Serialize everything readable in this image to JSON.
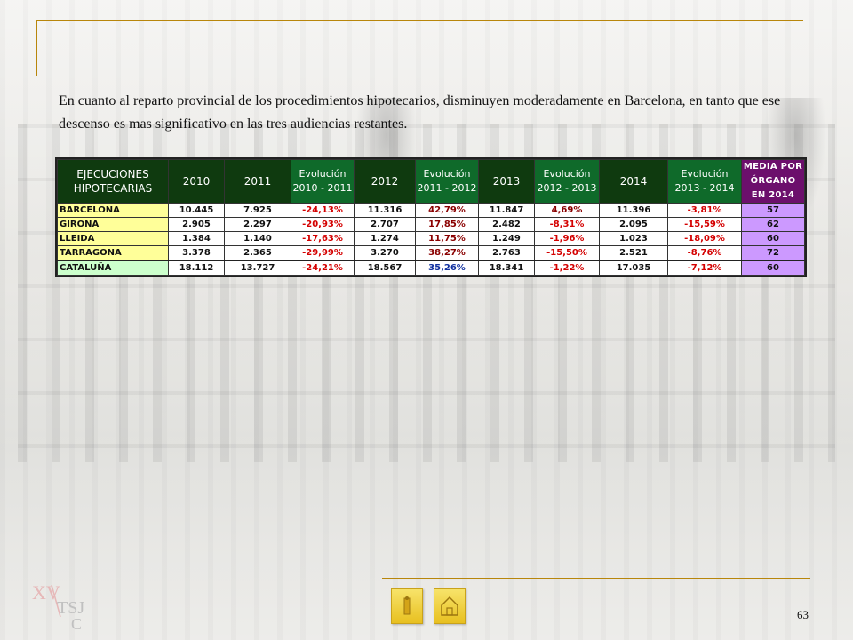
{
  "intro_text": "En cuanto al reparto provincial de los procedimientos hipotecarios, disminuyen moderadamente en  Barcelona, en tanto que ese descenso es mas significativo en las tres audiencias restantes.",
  "table": {
    "headers": {
      "label": "EJECUCIONES HIPOTECARIAS",
      "y2010": "2010",
      "y2011": "2011",
      "evo1": "Evolución 2010 - 2011",
      "y2012": "2012",
      "evo2": "Evolución 2011 - 2012",
      "y2013": "2013",
      "evo3": "Evolución 2012 - 2013",
      "y2014": "2014",
      "evo4": "Evolución 2013 - 2014",
      "media": "MEDIA POR ÓRGANO EN 2014"
    },
    "rows": [
      {
        "name": "BARCELONA",
        "v2010": "10.445",
        "v2011": "7.925",
        "e1": "-24,13%",
        "v2012": "11.316",
        "e2": "42,79%",
        "v2013": "11.847",
        "e3": "4,69%",
        "v2014": "11.396",
        "e4": "-3,81%",
        "media": "57"
      },
      {
        "name": "GIRONA",
        "v2010": "2.905",
        "v2011": "2.297",
        "e1": "-20,93%",
        "v2012": "2.707",
        "e2": "17,85%",
        "v2013": "2.482",
        "e3": "-8,31%",
        "v2014": "2.095",
        "e4": "-15,59%",
        "media": "62"
      },
      {
        "name": "LLEIDA",
        "v2010": "1.384",
        "v2011": "1.140",
        "e1": "-17,63%",
        "v2012": "1.274",
        "e2": "11,75%",
        "v2013": "1.249",
        "e3": "-1,96%",
        "v2014": "1.023",
        "e4": "-18,09%",
        "media": "60"
      },
      {
        "name": "TARRAGONA",
        "v2010": "3.378",
        "v2011": "2.365",
        "e1": "-29,99%",
        "v2012": "3.270",
        "e2": "38,27%",
        "v2013": "2.763",
        "e3": "-15,50%",
        "v2014": "2.521",
        "e4": "-8,76%",
        "media": "72"
      },
      {
        "name": "CATALUÑA",
        "v2010": "18.112",
        "v2011": "13.727",
        "e1": "-24,21%",
        "v2012": "18.567",
        "e2": "35,26%",
        "v2013": "18.341",
        "e3": "-1,22%",
        "v2014": "17.035",
        "e4": "-7,12%",
        "media": "60"
      }
    ]
  },
  "logo": {
    "roman": "XV",
    "brand": "TSJ",
    "letter": "C"
  },
  "navigation": {
    "info_icon": "info-icon",
    "home_icon": "home-icon"
  },
  "page_number": "63",
  "colors": {
    "accent_gold": "#b8860b",
    "header_dark_green": "#0f3a0f",
    "header_green": "#0f6a2a",
    "header_purple": "#6c0f6c",
    "province_yellow": "#ffff99",
    "total_green": "#ccffcc",
    "media_purple": "#cc99ff",
    "negative_red": "#d40000"
  }
}
